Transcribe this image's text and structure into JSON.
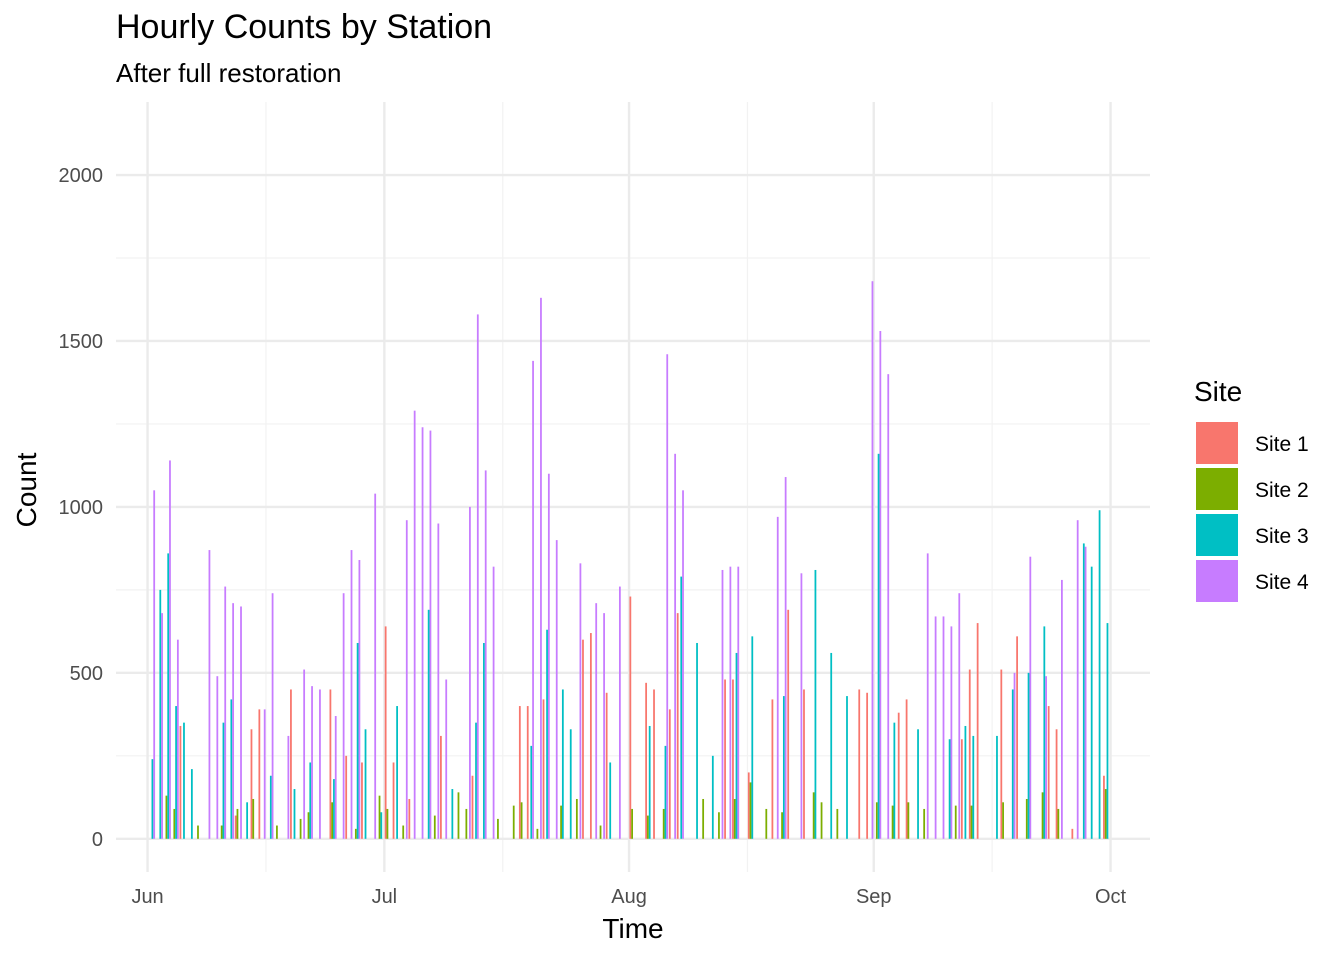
{
  "chart_data": {
    "type": "bar",
    "title": "Hourly Counts by Station",
    "subtitle": "After full restoration",
    "xlabel": "Time",
    "ylabel": "Count",
    "ylim": [
      -100,
      2220
    ],
    "y_ticks": [
      0,
      500,
      1000,
      1500,
      2000
    ],
    "xlim": [
      "2024-05-28",
      "2024-10-06"
    ],
    "x_ticks": [
      {
        "date": "2024-06-01",
        "label": "Jun"
      },
      {
        "date": "2024-07-01",
        "label": "Jul"
      },
      {
        "date": "2024-08-01",
        "label": "Aug"
      },
      {
        "date": "2024-09-01",
        "label": "Sep"
      },
      {
        "date": "2024-10-01",
        "label": "Oct"
      }
    ],
    "x_minor_ticks": [
      "2024-06-16",
      "2024-07-16",
      "2024-08-16",
      "2024-09-16"
    ],
    "grid": true,
    "legend": {
      "title": "Site",
      "placement": "right"
    },
    "series": [
      {
        "name": "Site 1",
        "color": "#F8766D",
        "points": [
          [
            "2024-06-05",
            340
          ],
          [
            "2024-06-12",
            70
          ],
          [
            "2024-06-14",
            330
          ],
          [
            "2024-06-15",
            390
          ],
          [
            "2024-06-19",
            450
          ],
          [
            "2024-06-24",
            450
          ],
          [
            "2024-06-26",
            250
          ],
          [
            "2024-06-28",
            230
          ],
          [
            "2024-07-01",
            640
          ],
          [
            "2024-07-02",
            230
          ],
          [
            "2024-07-04",
            120
          ],
          [
            "2024-07-08",
            310
          ],
          [
            "2024-07-12",
            190
          ],
          [
            "2024-07-18",
            400
          ],
          [
            "2024-07-19",
            400
          ],
          [
            "2024-07-21",
            420
          ],
          [
            "2024-07-26",
            600
          ],
          [
            "2024-07-27",
            620
          ],
          [
            "2024-07-29",
            440
          ],
          [
            "2024-08-01",
            730
          ],
          [
            "2024-08-03",
            470
          ],
          [
            "2024-08-04",
            450
          ],
          [
            "2024-08-06",
            390
          ],
          [
            "2024-08-07",
            680
          ],
          [
            "2024-08-13",
            480
          ],
          [
            "2024-08-14",
            480
          ],
          [
            "2024-08-16",
            200
          ],
          [
            "2024-08-19",
            420
          ],
          [
            "2024-08-21",
            690
          ],
          [
            "2024-08-23",
            450
          ],
          [
            "2024-08-30",
            450
          ],
          [
            "2024-08-31",
            440
          ],
          [
            "2024-09-04",
            380
          ],
          [
            "2024-09-05",
            420
          ],
          [
            "2024-09-12",
            300
          ],
          [
            "2024-09-13",
            510
          ],
          [
            "2024-09-14",
            650
          ],
          [
            "2024-09-17",
            510
          ],
          [
            "2024-09-19",
            610
          ],
          [
            "2024-09-23",
            400
          ],
          [
            "2024-09-24",
            330
          ],
          [
            "2024-09-26",
            30
          ],
          [
            "2024-09-30",
            190
          ]
        ]
      },
      {
        "name": "Site 2",
        "color": "#7CAE00",
        "points": [
          [
            "2024-06-03",
            130
          ],
          [
            "2024-06-04",
            90
          ],
          [
            "2024-06-07",
            40
          ],
          [
            "2024-06-10",
            40
          ],
          [
            "2024-06-12",
            90
          ],
          [
            "2024-06-14",
            120
          ],
          [
            "2024-06-17",
            40
          ],
          [
            "2024-06-20",
            60
          ],
          [
            "2024-06-21",
            80
          ],
          [
            "2024-06-24",
            110
          ],
          [
            "2024-06-27",
            30
          ],
          [
            "2024-06-30",
            130
          ],
          [
            "2024-07-01",
            90
          ],
          [
            "2024-07-03",
            40
          ],
          [
            "2024-07-07",
            70
          ],
          [
            "2024-07-10",
            140
          ],
          [
            "2024-07-11",
            90
          ],
          [
            "2024-07-15",
            60
          ],
          [
            "2024-07-17",
            100
          ],
          [
            "2024-07-18",
            110
          ],
          [
            "2024-07-20",
            30
          ],
          [
            "2024-07-23",
            100
          ],
          [
            "2024-07-25",
            120
          ],
          [
            "2024-07-28",
            40
          ],
          [
            "2024-08-01",
            90
          ],
          [
            "2024-08-03",
            70
          ],
          [
            "2024-08-05",
            90
          ],
          [
            "2024-08-10",
            120
          ],
          [
            "2024-08-12",
            80
          ],
          [
            "2024-08-14",
            120
          ],
          [
            "2024-08-16",
            170
          ],
          [
            "2024-08-18",
            90
          ],
          [
            "2024-08-20",
            80
          ],
          [
            "2024-08-24",
            140
          ],
          [
            "2024-08-25",
            110
          ],
          [
            "2024-08-27",
            90
          ],
          [
            "2024-09-01",
            110
          ],
          [
            "2024-09-03",
            100
          ],
          [
            "2024-09-05",
            110
          ],
          [
            "2024-09-07",
            90
          ],
          [
            "2024-09-11",
            100
          ],
          [
            "2024-09-13",
            100
          ],
          [
            "2024-09-17",
            110
          ],
          [
            "2024-09-20",
            120
          ],
          [
            "2024-09-22",
            140
          ],
          [
            "2024-09-24",
            90
          ],
          [
            "2024-09-30",
            150
          ]
        ]
      },
      {
        "name": "Site 3",
        "color": "#00BFC4",
        "points": [
          [
            "2024-06-01",
            240
          ],
          [
            "2024-06-02",
            750
          ],
          [
            "2024-06-03",
            860
          ],
          [
            "2024-06-04",
            400
          ],
          [
            "2024-06-05",
            350
          ],
          [
            "2024-06-06",
            210
          ],
          [
            "2024-06-10",
            350
          ],
          [
            "2024-06-11",
            420
          ],
          [
            "2024-06-13",
            110
          ],
          [
            "2024-06-16",
            190
          ],
          [
            "2024-06-19",
            150
          ],
          [
            "2024-06-21",
            230
          ],
          [
            "2024-06-24",
            180
          ],
          [
            "2024-06-27",
            590
          ],
          [
            "2024-06-28",
            330
          ],
          [
            "2024-06-30",
            80
          ],
          [
            "2024-07-02",
            400
          ],
          [
            "2024-07-06",
            690
          ],
          [
            "2024-07-09",
            150
          ],
          [
            "2024-07-12",
            350
          ],
          [
            "2024-07-13",
            590
          ],
          [
            "2024-07-19",
            280
          ],
          [
            "2024-07-21",
            630
          ],
          [
            "2024-07-23",
            450
          ],
          [
            "2024-07-24",
            330
          ],
          [
            "2024-07-29",
            230
          ],
          [
            "2024-08-03",
            340
          ],
          [
            "2024-08-05",
            280
          ],
          [
            "2024-08-07",
            790
          ],
          [
            "2024-08-09",
            590
          ],
          [
            "2024-08-11",
            250
          ],
          [
            "2024-08-14",
            560
          ],
          [
            "2024-08-16",
            610
          ],
          [
            "2024-08-20",
            430
          ],
          [
            "2024-08-24",
            810
          ],
          [
            "2024-08-26",
            560
          ],
          [
            "2024-08-28",
            430
          ],
          [
            "2024-09-01",
            1160
          ],
          [
            "2024-09-03",
            350
          ],
          [
            "2024-09-06",
            330
          ],
          [
            "2024-09-10",
            300
          ],
          [
            "2024-09-12",
            340
          ],
          [
            "2024-09-13",
            310
          ],
          [
            "2024-09-16",
            310
          ],
          [
            "2024-09-18",
            450
          ],
          [
            "2024-09-20",
            500
          ],
          [
            "2024-09-22",
            640
          ],
          [
            "2024-09-27",
            890
          ],
          [
            "2024-09-28",
            820
          ],
          [
            "2024-09-29",
            990
          ],
          [
            "2024-09-30",
            650
          ]
        ]
      },
      {
        "name": "Site 4",
        "color": "#C77CFF",
        "points": [
          [
            "2024-06-01",
            1050
          ],
          [
            "2024-06-02",
            680
          ],
          [
            "2024-06-03",
            1140
          ],
          [
            "2024-06-04",
            600
          ],
          [
            "2024-06-08",
            870
          ],
          [
            "2024-06-09",
            490
          ],
          [
            "2024-06-10",
            760
          ],
          [
            "2024-06-11",
            710
          ],
          [
            "2024-06-12",
            700
          ],
          [
            "2024-06-15",
            390
          ],
          [
            "2024-06-16",
            740
          ],
          [
            "2024-06-18",
            310
          ],
          [
            "2024-06-20",
            510
          ],
          [
            "2024-06-21",
            460
          ],
          [
            "2024-06-22",
            450
          ],
          [
            "2024-06-24",
            370
          ],
          [
            "2024-06-25",
            740
          ],
          [
            "2024-06-26",
            870
          ],
          [
            "2024-06-27",
            840
          ],
          [
            "2024-06-29",
            1040
          ],
          [
            "2024-07-03",
            960
          ],
          [
            "2024-07-04",
            1290
          ],
          [
            "2024-07-05",
            1240
          ],
          [
            "2024-07-06",
            1230
          ],
          [
            "2024-07-07",
            950
          ],
          [
            "2024-07-08",
            480
          ],
          [
            "2024-07-11",
            1000
          ],
          [
            "2024-07-12",
            1580
          ],
          [
            "2024-07-13",
            1110
          ],
          [
            "2024-07-14",
            820
          ],
          [
            "2024-07-19",
            1440
          ],
          [
            "2024-07-20",
            1630
          ],
          [
            "2024-07-21",
            1100
          ],
          [
            "2024-07-22",
            900
          ],
          [
            "2024-07-25",
            830
          ],
          [
            "2024-07-27",
            710
          ],
          [
            "2024-07-28",
            680
          ],
          [
            "2024-07-30",
            760
          ],
          [
            "2024-08-05",
            1460
          ],
          [
            "2024-08-06",
            1160
          ],
          [
            "2024-08-07",
            1050
          ],
          [
            "2024-08-12",
            810
          ],
          [
            "2024-08-13",
            820
          ],
          [
            "2024-08-14",
            820
          ],
          [
            "2024-08-19",
            970
          ],
          [
            "2024-08-20",
            1090
          ],
          [
            "2024-08-22",
            800
          ],
          [
            "2024-08-31",
            1680
          ],
          [
            "2024-09-01",
            1530
          ],
          [
            "2024-09-02",
            1400
          ],
          [
            "2024-09-07",
            860
          ],
          [
            "2024-09-08",
            670
          ],
          [
            "2024-09-09",
            670
          ],
          [
            "2024-09-10",
            640
          ],
          [
            "2024-09-11",
            740
          ],
          [
            "2024-09-18",
            500
          ],
          [
            "2024-09-20",
            850
          ],
          [
            "2024-09-22",
            490
          ],
          [
            "2024-09-24",
            780
          ],
          [
            "2024-09-26",
            960
          ],
          [
            "2024-09-27",
            880
          ]
        ]
      }
    ]
  }
}
